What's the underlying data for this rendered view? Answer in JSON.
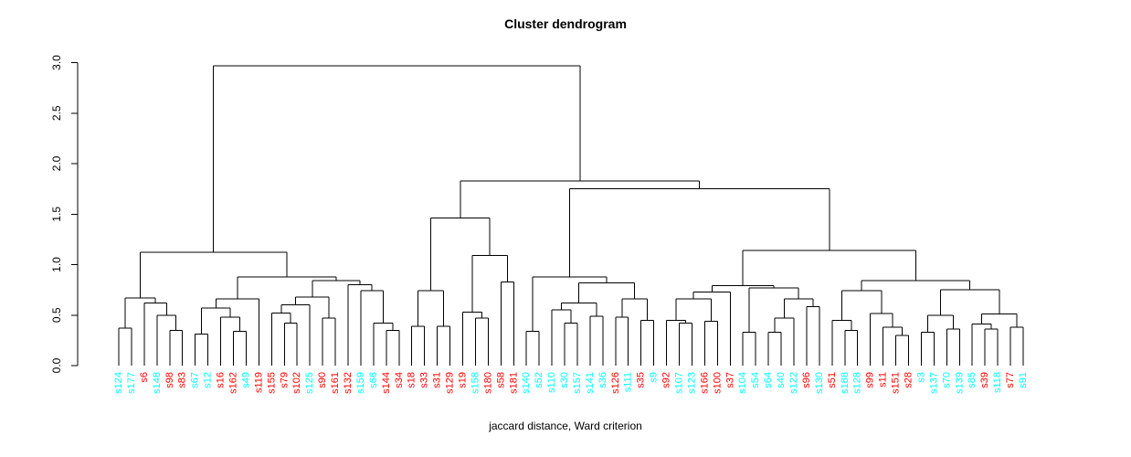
{
  "title": "Cluster dendrogram",
  "xlabel": "jaccard distance, Ward criterion",
  "colors": {
    "red": "#FF0000",
    "cyan": "#00FFFF",
    "line": "#000000",
    "axis": "#000000"
  },
  "y_axis": {
    "ticks": [
      "0.0",
      "0.5",
      "1.0",
      "1.5",
      "2.0",
      "2.5",
      "3.0"
    ],
    "min": 0,
    "max": 3
  },
  "chart_data": {
    "type": "dendrogram",
    "title": "Cluster dendrogram",
    "xlabel": "jaccard distance, Ward criterion",
    "ylim": [
      0,
      3
    ],
    "leaves": [
      {
        "label": "s124",
        "color": "cyan"
      },
      {
        "label": "s177",
        "color": "cyan"
      },
      {
        "label": "s6",
        "color": "red"
      },
      {
        "label": "s148",
        "color": "cyan"
      },
      {
        "label": "s98",
        "color": "red"
      },
      {
        "label": "s83",
        "color": "red"
      },
      {
        "label": "s67",
        "color": "cyan"
      },
      {
        "label": "s12",
        "color": "cyan"
      },
      {
        "label": "s16",
        "color": "red"
      },
      {
        "label": "s162",
        "color": "red"
      },
      {
        "label": "s49",
        "color": "cyan"
      },
      {
        "label": "s119",
        "color": "red"
      },
      {
        "label": "s155",
        "color": "red"
      },
      {
        "label": "s79",
        "color": "red"
      },
      {
        "label": "s102",
        "color": "red"
      },
      {
        "label": "s125",
        "color": "cyan"
      },
      {
        "label": "s90",
        "color": "red"
      },
      {
        "label": "s161",
        "color": "red"
      },
      {
        "label": "s132",
        "color": "red"
      },
      {
        "label": "s159",
        "color": "cyan"
      },
      {
        "label": "s66",
        "color": "cyan"
      },
      {
        "label": "s144",
        "color": "red"
      },
      {
        "label": "s34",
        "color": "red"
      },
      {
        "label": "s18",
        "color": "red"
      },
      {
        "label": "s33",
        "color": "red"
      },
      {
        "label": "s31",
        "color": "red"
      },
      {
        "label": "s129",
        "color": "red"
      },
      {
        "label": "s19",
        "color": "red"
      },
      {
        "label": "s158",
        "color": "cyan"
      },
      {
        "label": "s180",
        "color": "red"
      },
      {
        "label": "s58",
        "color": "red"
      },
      {
        "label": "s181",
        "color": "red"
      },
      {
        "label": "s140",
        "color": "cyan"
      },
      {
        "label": "s52",
        "color": "cyan"
      },
      {
        "label": "s110",
        "color": "cyan"
      },
      {
        "label": "s30",
        "color": "cyan"
      },
      {
        "label": "s157",
        "color": "cyan"
      },
      {
        "label": "s141",
        "color": "cyan"
      },
      {
        "label": "s36",
        "color": "cyan"
      },
      {
        "label": "s126",
        "color": "red"
      },
      {
        "label": "s111",
        "color": "cyan"
      },
      {
        "label": "s35",
        "color": "red"
      },
      {
        "label": "s9",
        "color": "cyan"
      },
      {
        "label": "s92",
        "color": "red"
      },
      {
        "label": "s107",
        "color": "cyan"
      },
      {
        "label": "s123",
        "color": "cyan"
      },
      {
        "label": "s166",
        "color": "red"
      },
      {
        "label": "s100",
        "color": "red"
      },
      {
        "label": "s37",
        "color": "red"
      },
      {
        "label": "s104",
        "color": "cyan"
      },
      {
        "label": "s54",
        "color": "cyan"
      },
      {
        "label": "s64",
        "color": "cyan"
      },
      {
        "label": "s40",
        "color": "cyan"
      },
      {
        "label": "s122",
        "color": "cyan"
      },
      {
        "label": "s96",
        "color": "red"
      },
      {
        "label": "s130",
        "color": "cyan"
      },
      {
        "label": "s51",
        "color": "red"
      },
      {
        "label": "s188",
        "color": "cyan"
      },
      {
        "label": "s128",
        "color": "cyan"
      },
      {
        "label": "s99",
        "color": "red"
      },
      {
        "label": "s11",
        "color": "red"
      },
      {
        "label": "s151",
        "color": "red"
      },
      {
        "label": "s28",
        "color": "red"
      },
      {
        "label": "s3",
        "color": "cyan"
      },
      {
        "label": "s137",
        "color": "cyan"
      },
      {
        "label": "s70",
        "color": "cyan"
      },
      {
        "label": "s139",
        "color": "cyan"
      },
      {
        "label": "s85",
        "color": "cyan"
      },
      {
        "label": "s39",
        "color": "red"
      },
      {
        "label": "s118",
        "color": "cyan"
      },
      {
        "label": "s77",
        "color": "red"
      },
      {
        "label": "s91",
        "color": "cyan"
      }
    ],
    "tree": [
      2.97,
      [
        1.12,
        [
          0.67,
          [
            0.37,
            0,
            1
          ],
          [
            0.62,
            2,
            [
              0.5,
              3,
              [
                0.35,
                4,
                5
              ]
            ]
          ]
        ],
        [
          0.88,
          [
            0.66,
            [
              0.57,
              [
                0.31,
                6,
                7
              ],
              [
                0.48,
                8,
                [
                  0.34,
                  9,
                  10
                ]
              ]
            ],
            11
          ],
          [
            0.84,
            [
              0.68,
              [
                0.6,
                [
                  0.52,
                  12,
                  [
                    0.42,
                    13,
                    14
                  ]
                ],
                15
              ],
              [
                0.47,
                16,
                17
              ]
            ],
            [
              0.8,
              18,
              [
                0.74,
                19,
                [
                  0.42,
                  20,
                  [
                    0.35,
                    21,
                    22
                  ]
                ]
              ]
            ]
          ]
        ]
      ],
      [
        1.83,
        [
          1.46,
          [
            0.74,
            [
              0.39,
              23,
              24
            ],
            [
              0.39,
              25,
              26
            ]
          ],
          [
            1.09,
            [
              0.53,
              27,
              [
                0.47,
                28,
                29
              ]
            ],
            [
              0.83,
              30,
              31
            ]
          ]
        ],
        [
          1.75,
          [
            0.88,
            [
              0.34,
              32,
              33
            ],
            [
              0.82,
              [
                0.62,
                [
                  0.55,
                  34,
                  [
                    0.42,
                    35,
                    36
                  ]
                ],
                [
                  0.49,
                  37,
                  38
                ]
              ],
              [
                0.66,
                [
                  0.48,
                  39,
                  40
                ],
                [
                  0.45,
                  41,
                  42
                ]
              ]
            ]
          ],
          [
            1.14,
            [
              0.79,
              [
                0.73,
                [
                  0.66,
                  [
                    0.45,
                    43,
                    [
                      0.42,
                      44,
                      45
                    ]
                  ],
                  [
                    0.44,
                    46,
                    47
                  ]
                ],
                48
              ],
              [
                0.77,
                [
                  0.33,
                  49,
                  50
                ],
                [
                  0.66,
                  [
                    0.47,
                    [
                      0.33,
                      51,
                      52
                    ],
                    53
                  ],
                  [
                    0.585,
                    54,
                    55
                  ]
                ]
              ]
            ],
            [
              0.84,
              [
                0.74,
                [
                  0.45,
                  56,
                  [
                    0.35,
                    57,
                    58
                  ]
                ],
                [
                  0.515,
                  59,
                  [
                    0.38,
                    60,
                    [
                      0.3,
                      61,
                      62
                    ]
                  ]
                ]
              ],
              [
                0.75,
                [
                  0.5,
                  [
                    0.33,
                    63,
                    64
                  ],
                  [
                    0.36,
                    65,
                    66
                  ]
                ],
                [
                  0.51,
                  [
                    0.41,
                    67,
                    [
                      0.36,
                      68,
                      69
                    ]
                  ],
                  [
                    0.38,
                    70,
                    71
                  ]
                ]
              ]
            ]
          ]
        ]
      ]
    ]
  }
}
